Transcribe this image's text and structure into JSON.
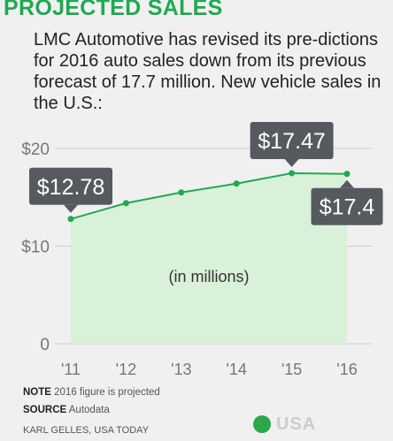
{
  "header": {
    "title": "PROJECTED SALES",
    "subtitle": "LMC Automotive has revised its pre-dictions for 2016 auto sales down from its previous forecast of 17.7 million. New vehicle sales in the U.S.:"
  },
  "chart_data": {
    "type": "area",
    "x": [
      "'11",
      "'12",
      "'13",
      "'14",
      "'15",
      "'16"
    ],
    "values": [
      12.78,
      14.4,
      15.5,
      16.4,
      17.47,
      17.4
    ],
    "ylim": [
      0,
      20
    ],
    "yticks": [
      0,
      10,
      20
    ],
    "ytick_labels": [
      "0",
      "$10",
      "$20"
    ],
    "unit_note": "(in millions)",
    "callouts": [
      {
        "x": "'11",
        "label": "$12.78",
        "placement": "above"
      },
      {
        "x": "'15",
        "label": "$17.47",
        "placement": "above"
      },
      {
        "x": "'16",
        "label": "$17.4",
        "placement": "below"
      }
    ],
    "colors": {
      "line": "#21a853",
      "fill": "#d9f0d9",
      "callout": "#565a5e",
      "grid": "#cccccc"
    }
  },
  "footer": {
    "note_label": "NOTE",
    "note_text": "2016 figure is projected",
    "source_label": "SOURCE",
    "source_text": "Autodata",
    "credit": "KARL GELLES, USA TODAY",
    "logo_text": "USA"
  }
}
